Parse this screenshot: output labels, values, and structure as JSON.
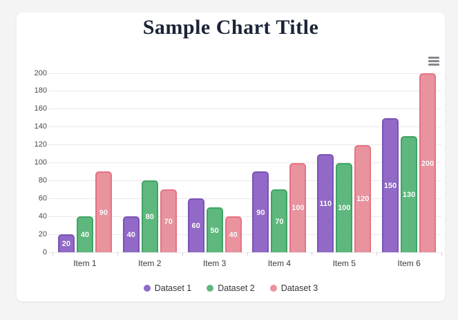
{
  "page": {
    "background": "#f4f4f5"
  },
  "card": {
    "menu_icon": "hamburger-menu-icon"
  },
  "chart_data": {
    "type": "bar",
    "title": "Sample Chart Title",
    "categories": [
      "Item 1",
      "Item 2",
      "Item 3",
      "Item 4",
      "Item 5",
      "Item 6"
    ],
    "series": [
      {
        "name": "Dataset 1",
        "values": [
          20,
          40,
          60,
          90,
          110,
          150
        ],
        "fill": "#9269c6",
        "border": "#7a53b5"
      },
      {
        "name": "Dataset 2",
        "values": [
          40,
          80,
          50,
          70,
          100,
          130
        ],
        "fill": "#5eb87d",
        "border": "#3fa463"
      },
      {
        "name": "Dataset 3",
        "values": [
          90,
          70,
          40,
          100,
          120,
          200
        ],
        "fill": "#e9939e",
        "border": "#e57284"
      }
    ],
    "ylim": [
      0,
      200
    ],
    "y_ticks": [
      0,
      20,
      40,
      60,
      80,
      100,
      120,
      140,
      160,
      180,
      200
    ],
    "grid": true,
    "data_labels": true,
    "legend_position": "bottom"
  }
}
